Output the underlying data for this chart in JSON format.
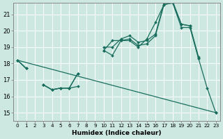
{
  "xlabel": "Humidex (Indice chaleur)",
  "bg_color": "#cce8e0",
  "line_color": "#1a6e5e",
  "xlim": [
    -0.5,
    23.5
  ],
  "ylim": [
    14.5,
    21.7
  ],
  "yticks": [
    15,
    16,
    17,
    18,
    19,
    20,
    21
  ],
  "xticks": [
    0,
    1,
    2,
    3,
    4,
    5,
    6,
    7,
    8,
    9,
    10,
    11,
    12,
    13,
    14,
    15,
    16,
    17,
    18,
    19,
    20,
    21,
    22,
    23
  ],
  "series_with_markers": [
    {
      "x": [
        0,
        1,
        2,
        3,
        4,
        5,
        6,
        7,
        8,
        9,
        10,
        11,
        12,
        13,
        14,
        15,
        16,
        17,
        18,
        19,
        20,
        21,
        22,
        23
      ],
      "y": [
        18.2,
        17.7,
        null,
        16.7,
        16.4,
        16.5,
        16.5,
        16.6,
        null,
        null,
        18.8,
        18.5,
        19.4,
        19.5,
        19.1,
        19.2,
        19.7,
        21.6,
        21.7,
        20.2,
        20.2,
        18.3,
        16.5,
        15.0
      ]
    },
    {
      "x": [
        0,
        1,
        2,
        3,
        4,
        5,
        6,
        7,
        8,
        9,
        10,
        11,
        12,
        13,
        14,
        15,
        16,
        17,
        18,
        19,
        20,
        21,
        22,
        23
      ],
      "y": [
        18.2,
        17.7,
        null,
        16.7,
        16.4,
        16.5,
        16.5,
        17.4,
        null,
        null,
        19.0,
        19.0,
        19.5,
        19.7,
        19.3,
        19.4,
        19.8,
        21.7,
        21.8,
        20.4,
        20.3,
        18.4,
        null,
        15.0
      ]
    },
    {
      "x": [
        0,
        1,
        2,
        3,
        4,
        5,
        6,
        7,
        8,
        9,
        10,
        11,
        12,
        13,
        14,
        15,
        16,
        17,
        18,
        19,
        20,
        21,
        22,
        23
      ],
      "y": [
        18.2,
        17.7,
        null,
        16.7,
        16.4,
        16.5,
        16.5,
        17.4,
        null,
        null,
        18.8,
        19.4,
        19.4,
        19.4,
        19.0,
        19.5,
        20.5,
        21.6,
        21.7,
        20.4,
        20.3,
        18.3,
        null,
        15.0
      ]
    }
  ],
  "series_no_markers": [
    {
      "x": [
        0,
        23
      ],
      "y": [
        18.2,
        15.0
      ]
    }
  ]
}
